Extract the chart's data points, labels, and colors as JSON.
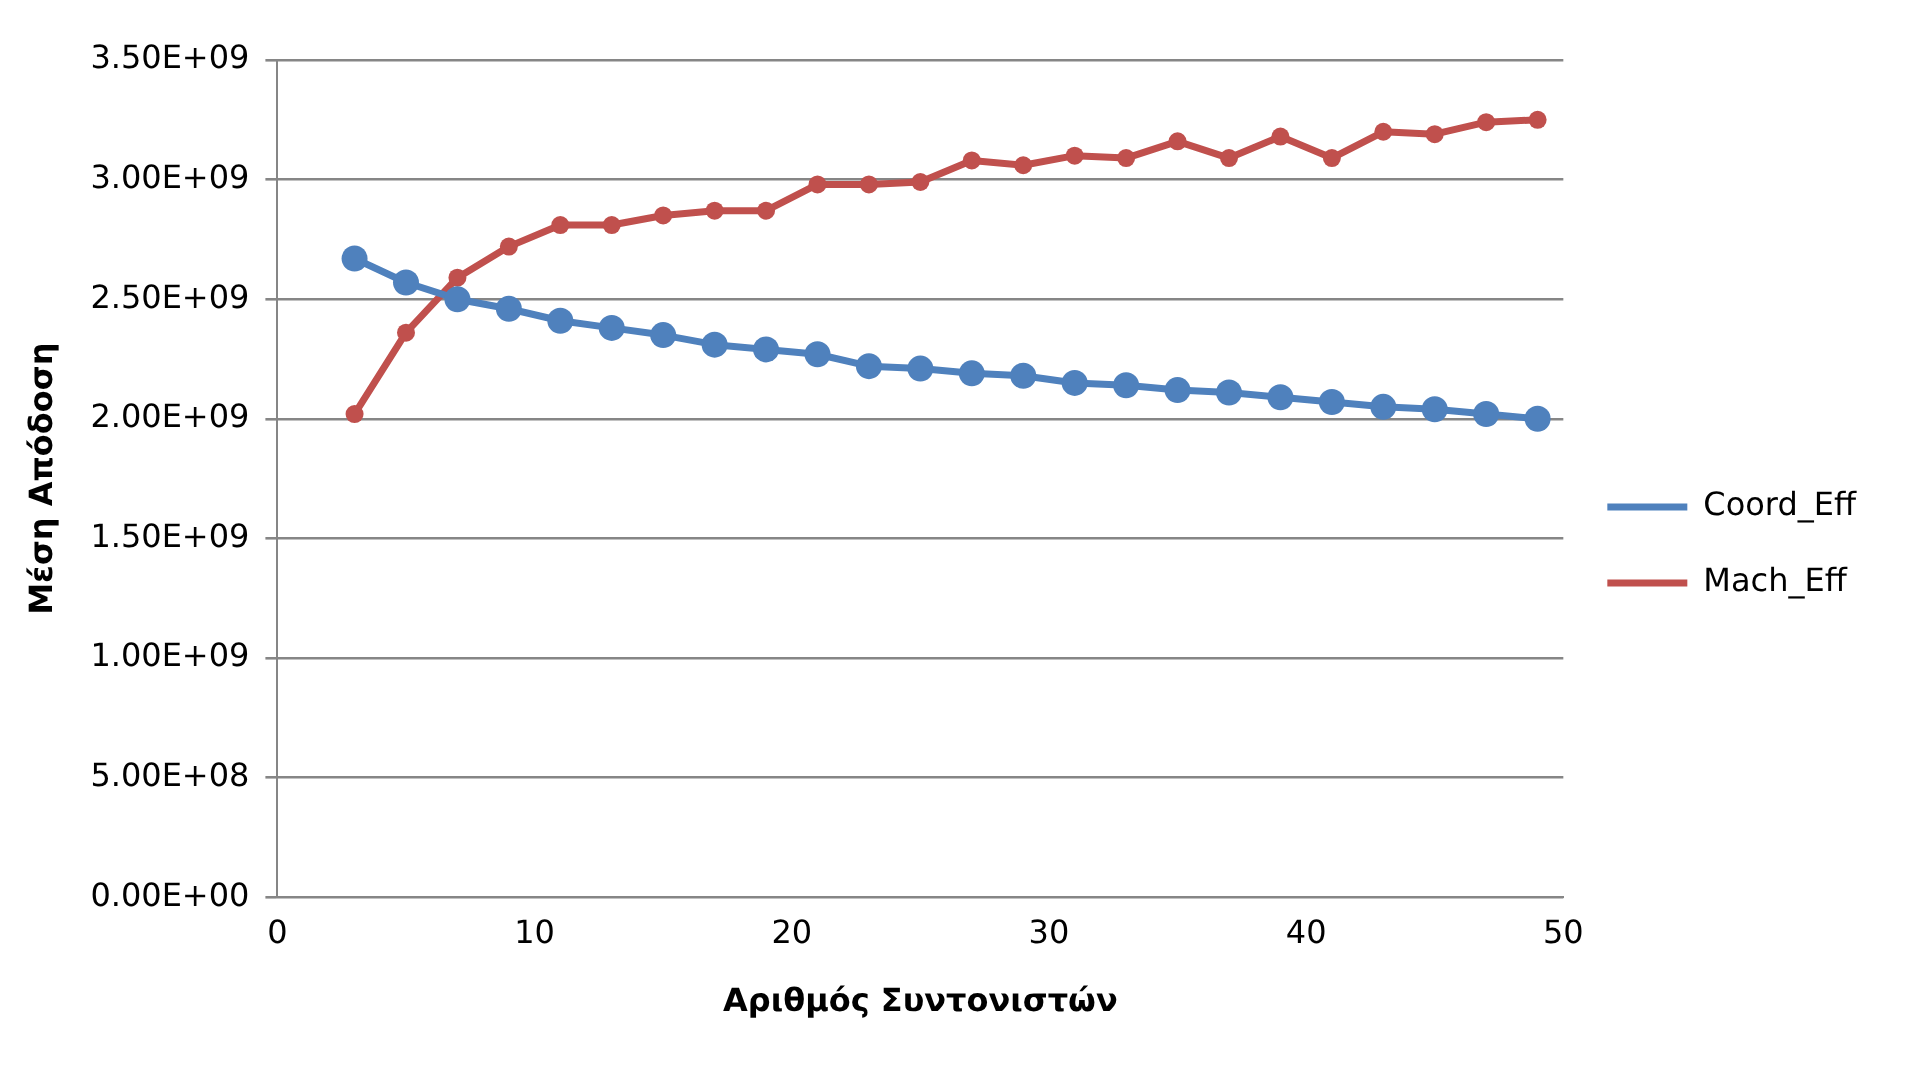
{
  "chart_data": {
    "type": "line",
    "xlabel": "Αριθμός Συντονιστών",
    "ylabel": "Μέση Απόδοση",
    "x": [
      3,
      5,
      7,
      9,
      11,
      13,
      15,
      17,
      19,
      21,
      23,
      25,
      27,
      29,
      31,
      33,
      35,
      37,
      39,
      41,
      43,
      45,
      47,
      49
    ],
    "series": [
      {
        "name": "Coord_Eff",
        "color": "#4f81bd",
        "values": [
          2670000000.0,
          2570000000.0,
          2500000000.0,
          2460000000.0,
          2410000000.0,
          2380000000.0,
          2350000000.0,
          2310000000.0,
          2290000000.0,
          2270000000.0,
          2220000000.0,
          2210000000.0,
          2190000000.0,
          2180000000.0,
          2150000000.0,
          2140000000.0,
          2120000000.0,
          2110000000.0,
          2090000000.0,
          2070000000.0,
          2050000000.0,
          2040000000.0,
          2020000000.0,
          2000000000.0
        ]
      },
      {
        "name": "Mach_Eff",
        "color": "#c0504d",
        "values": [
          2020000000.0,
          2360000000.0,
          2590000000.0,
          2720000000.0,
          2810000000.0,
          2810000000.0,
          2850000000.0,
          2870000000.0,
          2870000000.0,
          2980000000.0,
          2980000000.0,
          2990000000.0,
          3080000000.0,
          3060000000.0,
          3100000000.0,
          3090000000.0,
          3160000000.0,
          3090000000.0,
          3180000000.0,
          3090000000.0,
          3200000000.0,
          3190000000.0,
          3240000000.0,
          3250000000.0
        ]
      }
    ],
    "xlim": [
      0,
      50
    ],
    "xticks": [
      0,
      10,
      20,
      30,
      40,
      50
    ],
    "ylim": [
      0,
      3500000000.0
    ],
    "yticks": [
      {
        "value": 0,
        "label": "0.00E+00"
      },
      {
        "value": 500000000.0,
        "label": "5.00E+08"
      },
      {
        "value": 1000000000.0,
        "label": "1.00E+09"
      },
      {
        "value": 1500000000.0,
        "label": "1.50E+09"
      },
      {
        "value": 2000000000.0,
        "label": "2.00E+09"
      },
      {
        "value": 2500000000.0,
        "label": "2.50E+09"
      },
      {
        "value": 3000000000.0,
        "label": "3.00E+09"
      },
      {
        "value": 3500000000.0,
        "label": "3.50E+09"
      }
    ],
    "grid": "y",
    "legend": "right",
    "marker": "circle",
    "line_style": "solid"
  }
}
